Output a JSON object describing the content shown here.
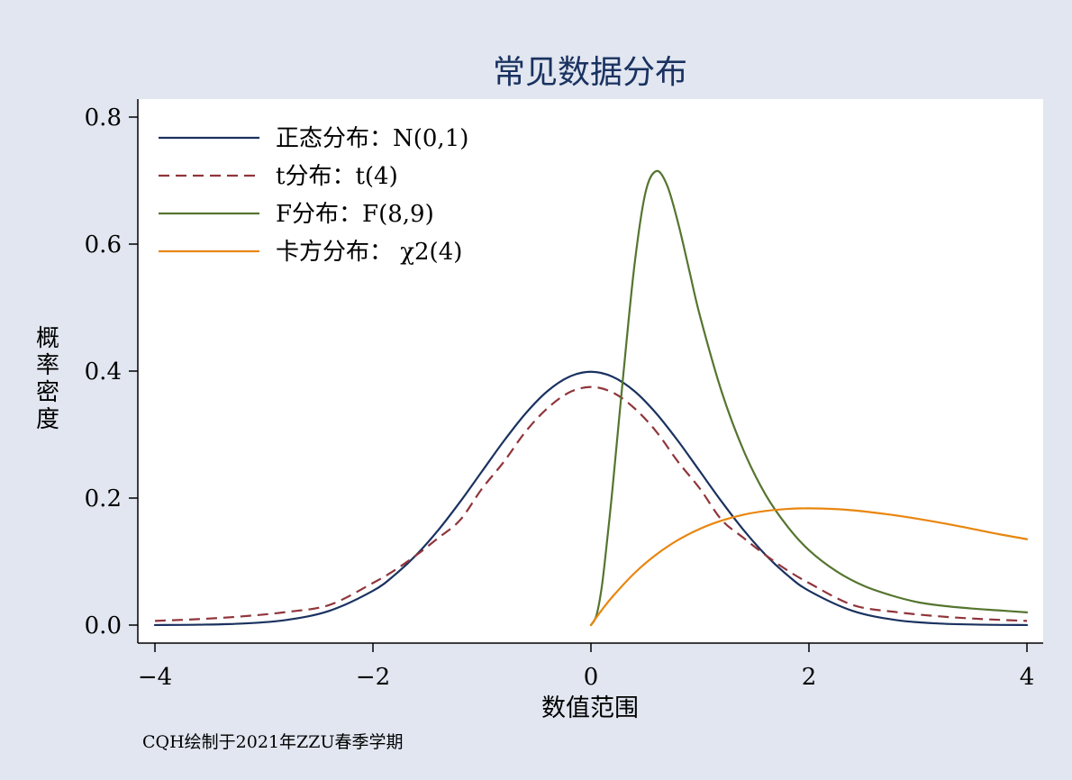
{
  "chart_data": {
    "type": "line",
    "title": "常见数据分布",
    "xlabel": "数值范围",
    "ylabel": "概率密度",
    "note": "CQH绘制于2021年ZZU春季学期",
    "xlim": [
      -4,
      4
    ],
    "ylim": [
      0,
      0.8
    ],
    "xticks": [
      -4,
      -2,
      0,
      2,
      4
    ],
    "yticks": [
      0.0,
      0.2,
      0.4,
      0.6,
      0.8
    ],
    "xtick_labels": [
      "−4",
      "−2",
      "0",
      "2",
      "4"
    ],
    "ytick_labels": [
      "0.0",
      "0.2",
      "0.4",
      "0.6",
      "0.8"
    ],
    "legend_position": "top-left",
    "grid": false,
    "series": [
      {
        "name": "正态分布：N(0,1)",
        "color": "#1a3260",
        "style": "solid",
        "x": [
          -4,
          -3.6,
          -3.2,
          -2.8,
          -2.4,
          -2,
          -1.8,
          -1.6,
          -1.4,
          -1.2,
          -1,
          -0.8,
          -0.6,
          -0.4,
          -0.2,
          0,
          0.2,
          0.4,
          0.6,
          0.8,
          1,
          1.2,
          1.4,
          1.6,
          1.8,
          2,
          2.4,
          2.8,
          3.2,
          3.6,
          4
        ],
        "y": [
          0.0001,
          0.0006,
          0.0024,
          0.0079,
          0.0224,
          0.054,
          0.079,
          0.1109,
          0.1497,
          0.1942,
          0.242,
          0.2897,
          0.3332,
          0.3683,
          0.391,
          0.3989,
          0.391,
          0.3683,
          0.3332,
          0.2897,
          0.242,
          0.1942,
          0.1497,
          0.1109,
          0.079,
          0.054,
          0.0224,
          0.0079,
          0.0024,
          0.0006,
          0.0001
        ]
      },
      {
        "name": "t分布：t(4)",
        "color": "#90353b",
        "style": "dashed",
        "x": [
          -4,
          -3.6,
          -3.2,
          -2.8,
          -2.4,
          -2,
          -1.8,
          -1.6,
          -1.4,
          -1.2,
          -1,
          -0.8,
          -0.6,
          -0.4,
          -0.2,
          0,
          0.2,
          0.4,
          0.6,
          0.8,
          1,
          1.2,
          1.4,
          1.6,
          1.8,
          2,
          2.4,
          2.8,
          3.2,
          3.6,
          4
        ],
        "y": [
          0.0066,
          0.0094,
          0.0137,
          0.0205,
          0.0317,
          0.0663,
          0.0865,
          0.1104,
          0.1373,
          0.1655,
          0.2147,
          0.257,
          0.3046,
          0.3413,
          0.3663,
          0.375,
          0.3663,
          0.3413,
          0.3046,
          0.257,
          0.2147,
          0.1655,
          0.1373,
          0.1104,
          0.0865,
          0.0663,
          0.0317,
          0.0205,
          0.0137,
          0.0094,
          0.0066
        ]
      },
      {
        "name": "F分布：F(8,9)",
        "color": "#55752f",
        "style": "solid",
        "x": [
          0,
          0.05,
          0.1,
          0.15,
          0.2,
          0.3,
          0.4,
          0.5,
          0.6,
          0.7,
          0.8,
          0.9,
          1,
          1.2,
          1.4,
          1.6,
          1.8,
          2,
          2.25,
          2.5,
          2.75,
          3,
          3.25,
          3.5,
          3.75,
          4
        ],
        "y": [
          0,
          0.015,
          0.061,
          0.136,
          0.219,
          0.4,
          0.568,
          0.681,
          0.715,
          0.692,
          0.633,
          0.56,
          0.487,
          0.367,
          0.275,
          0.206,
          0.156,
          0.118,
          0.085,
          0.062,
          0.047,
          0.036,
          0.03,
          0.026,
          0.023,
          0.02
        ]
      },
      {
        "name": "卡方分布： χ2(4)",
        "color": "#e8860e",
        "style": "solid",
        "x": [
          0,
          0.1,
          0.2,
          0.4,
          0.6,
          0.8,
          1,
          1.2,
          1.4,
          1.6,
          1.8,
          2,
          2.25,
          2.5,
          2.75,
          3,
          3.25,
          3.5,
          3.75,
          4
        ],
        "y": [
          0,
          0.0238,
          0.0452,
          0.0819,
          0.1111,
          0.1341,
          0.1516,
          0.1646,
          0.1739,
          0.1797,
          0.1829,
          0.1839,
          0.1826,
          0.1791,
          0.1738,
          0.1673,
          0.1598,
          0.1515,
          0.1429,
          0.1353
        ]
      }
    ]
  }
}
